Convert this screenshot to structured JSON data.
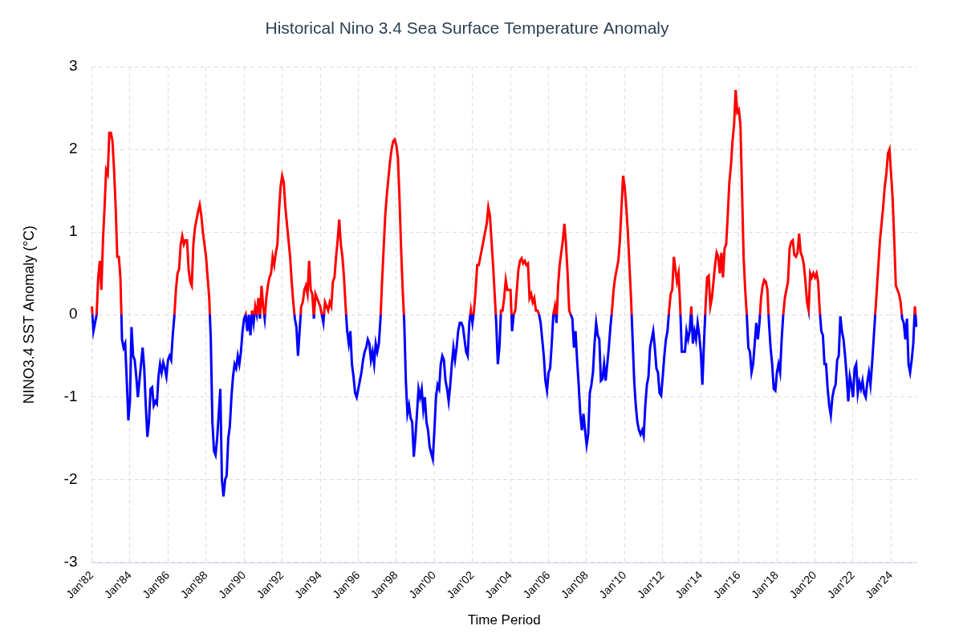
{
  "chart_data": {
    "type": "line",
    "title": "Historical Nino 3.4 Sea Surface Temperature Anomaly",
    "x_label": "Time Period",
    "y_label": "NINO3.4 SST Anomaly (°C)",
    "color": {
      "positive": "#ff0000",
      "negative": "#0000ff"
    },
    "grid": true,
    "ylim": [
      -3,
      3
    ],
    "yticks": [
      -3,
      -2,
      -1,
      0,
      1,
      2,
      3
    ],
    "categories": [
      "Jan'82",
      null,
      null,
      null,
      null,
      null,
      null,
      null,
      null,
      null,
      null,
      null,
      null,
      null,
      null,
      null,
      null,
      null,
      null,
      null,
      null,
      null,
      null,
      null,
      "Jan'84",
      null,
      null,
      null,
      null,
      null,
      null,
      null,
      null,
      null,
      null,
      null,
      null,
      null,
      null,
      null,
      null,
      null,
      null,
      null,
      null,
      null,
      null,
      null,
      "Jan'86",
      null,
      null,
      null,
      null,
      null,
      null,
      null,
      null,
      null,
      null,
      null,
      null,
      null,
      null,
      null,
      null,
      null,
      null,
      null,
      null,
      null,
      null,
      null,
      "Jan'88",
      null,
      null,
      null,
      null,
      null,
      null,
      null,
      null,
      null,
      null,
      null,
      null,
      null,
      null,
      null,
      null,
      null,
      null,
      null,
      null,
      null,
      null,
      null,
      "Jan'90",
      null,
      null,
      null,
      null,
      null,
      null,
      null,
      null,
      null,
      null,
      null,
      null,
      null,
      null,
      null,
      null,
      null,
      null,
      null,
      null,
      null,
      null,
      null,
      "Jan'92",
      null,
      null,
      null,
      null,
      null,
      null,
      null,
      null,
      null,
      null,
      null,
      null,
      null,
      null,
      null,
      null,
      null,
      null,
      null,
      null,
      null,
      null,
      null,
      "Jan'94",
      null,
      null,
      null,
      null,
      null,
      null,
      null,
      null,
      null,
      null,
      null,
      null,
      null,
      null,
      null,
      null,
      null,
      null,
      null,
      null,
      null,
      null,
      null,
      "Jan'96",
      null,
      null,
      null,
      null,
      null,
      null,
      null,
      null,
      null,
      null,
      null,
      null,
      null,
      null,
      null,
      null,
      null,
      null,
      null,
      null,
      null,
      null,
      null,
      "Jan'98",
      null,
      null,
      null,
      null,
      null,
      null,
      null,
      null,
      null,
      null,
      null,
      null,
      null,
      null,
      null,
      null,
      null,
      null,
      null,
      null,
      null,
      null,
      null,
      "Jan'00",
      null,
      null,
      null,
      null,
      null,
      null,
      null,
      null,
      null,
      null,
      null,
      null,
      null,
      null,
      null,
      null,
      null,
      null,
      null,
      null,
      null,
      null,
      null,
      "Jan'02",
      null,
      null,
      null,
      null,
      null,
      null,
      null,
      null,
      null,
      null,
      null,
      null,
      null,
      null,
      null,
      null,
      null,
      null,
      null,
      null,
      null,
      null,
      null,
      "Jan'04",
      null,
      null,
      null,
      null,
      null,
      null,
      null,
      null,
      null,
      null,
      null,
      null,
      null,
      null,
      null,
      null,
      null,
      null,
      null,
      null,
      null,
      null,
      null,
      "Jan'06",
      null,
      null,
      null,
      null,
      null,
      null,
      null,
      null,
      null,
      null,
      null,
      null,
      null,
      null,
      null,
      null,
      null,
      null,
      null,
      null,
      null,
      null,
      null,
      "Jan'08",
      null,
      null,
      null,
      null,
      null,
      null,
      null,
      null,
      null,
      null,
      null,
      null,
      null,
      null,
      null,
      null,
      null,
      null,
      null,
      null,
      null,
      null,
      null,
      "Jan'10",
      null,
      null,
      null,
      null,
      null,
      null,
      null,
      null,
      null,
      null,
      null,
      null,
      null,
      null,
      null,
      null,
      null,
      null,
      null,
      null,
      null,
      null,
      null,
      "Jan'12",
      null,
      null,
      null,
      null,
      null,
      null,
      null,
      null,
      null,
      null,
      null,
      null,
      null,
      null,
      null,
      null,
      null,
      null,
      null,
      null,
      null,
      null,
      null,
      "Jan'14",
      null,
      null,
      null,
      null,
      null,
      null,
      null,
      null,
      null,
      null,
      null,
      null,
      null,
      null,
      null,
      null,
      null,
      null,
      null,
      null,
      null,
      null,
      null,
      "Jan'16",
      null,
      null,
      null,
      null,
      null,
      null,
      null,
      null,
      null,
      null,
      null,
      null,
      null,
      null,
      null,
      null,
      null,
      null,
      null,
      null,
      null,
      null,
      null,
      "Jan'18",
      null,
      null,
      null,
      null,
      null,
      null,
      null,
      null,
      null,
      null,
      null,
      null,
      null,
      null,
      null,
      null,
      null,
      null,
      null,
      null,
      null,
      null,
      null,
      "Jan'20",
      null,
      null,
      null,
      null,
      null,
      null,
      null,
      null,
      null,
      null,
      null,
      null,
      null,
      null,
      null,
      null,
      null,
      null,
      null,
      null,
      null,
      null,
      null,
      "Jan'22",
      null,
      null,
      null,
      null,
      null,
      null,
      null,
      null,
      null,
      null,
      null,
      null,
      null,
      null,
      null,
      null,
      null,
      null,
      null,
      null,
      null,
      null,
      null,
      "Jan'24",
      null,
      null,
      null,
      null,
      null,
      null,
      null,
      null,
      null,
      null,
      null,
      null,
      null,
      null,
      null,
      null
    ],
    "values": [
      0.1,
      -0.2,
      -0.1,
      0.0,
      0.45,
      0.65,
      0.3,
      0.9,
      1.3,
      1.75,
      1.7,
      2.2,
      2.2,
      2.1,
      1.75,
      1.3,
      0.7,
      0.7,
      0.45,
      -0.3,
      -0.4,
      -0.35,
      -0.8,
      -1.28,
      -1.05,
      -0.15,
      -0.5,
      -0.55,
      -0.75,
      -1.0,
      -0.8,
      -0.6,
      -0.4,
      -0.65,
      -1.1,
      -1.48,
      -1.3,
      -0.9,
      -0.88,
      -1.1,
      -1.05,
      -1.08,
      -0.75,
      -0.6,
      -0.7,
      -0.58,
      -0.65,
      -0.75,
      -0.55,
      -0.5,
      -0.55,
      -0.25,
      -0.02,
      0.3,
      0.5,
      0.55,
      0.85,
      0.95,
      0.85,
      0.9,
      0.9,
      0.55,
      0.4,
      0.35,
      0.85,
      1.05,
      1.15,
      1.25,
      1.33,
      1.2,
      1.0,
      0.85,
      0.7,
      0.45,
      0.2,
      -0.3,
      -1.3,
      -1.65,
      -1.7,
      -1.5,
      -1.2,
      -0.9,
      -2.0,
      -2.2,
      -2.0,
      -1.95,
      -1.5,
      -1.35,
      -1.0,
      -0.75,
      -0.6,
      -0.65,
      -0.5,
      -0.6,
      -0.45,
      -0.2,
      -0.05,
      0.0,
      -0.2,
      0.0,
      -0.25,
      0.05,
      -0.1,
      0.1,
      0.0,
      0.2,
      -0.05,
      0.35,
      0.1,
      -0.05,
      0.2,
      0.35,
      0.45,
      0.5,
      0.7,
      0.6,
      0.75,
      0.85,
      1.25,
      1.55,
      1.68,
      1.6,
      1.3,
      1.1,
      0.9,
      0.7,
      0.4,
      0.15,
      -0.05,
      -0.15,
      -0.5,
      -0.2,
      0.1,
      0.15,
      0.3,
      0.35,
      0.25,
      0.65,
      0.3,
      0.25,
      -0.05,
      0.25,
      0.2,
      0.15,
      0.1,
      0.0,
      -0.1,
      0.15,
      0.1,
      0.05,
      0.15,
      0.1,
      0.4,
      0.45,
      0.7,
      0.9,
      1.15,
      0.85,
      0.7,
      0.45,
      0.1,
      -0.2,
      -0.35,
      -0.2,
      -0.6,
      -0.75,
      -0.95,
      -1.0,
      -0.9,
      -0.8,
      -0.7,
      -0.55,
      -0.45,
      -0.4,
      -0.3,
      -0.35,
      -0.55,
      -0.45,
      -0.6,
      -0.35,
      -0.45,
      -0.35,
      -0.05,
      0.4,
      0.8,
      1.2,
      1.45,
      1.65,
      1.85,
      2.0,
      2.1,
      2.12,
      2.05,
      1.9,
      1.4,
      0.8,
      0.3,
      -0.1,
      -0.8,
      -1.2,
      -1.1,
      -1.25,
      -1.3,
      -1.72,
      -1.5,
      -1.2,
      -0.9,
      -1.0,
      -0.9,
      -1.15,
      -1.0,
      -1.3,
      -1.4,
      -1.6,
      -1.68,
      -1.75,
      -1.4,
      -1.0,
      -0.85,
      -0.9,
      -0.6,
      -0.5,
      -0.55,
      -0.8,
      -0.9,
      -1.05,
      -0.85,
      -0.6,
      -0.4,
      -0.55,
      -0.4,
      -0.2,
      -0.1,
      -0.1,
      -0.15,
      -0.3,
      -0.45,
      -0.5,
      -0.1,
      0.05,
      -0.1,
      0.05,
      0.3,
      0.6,
      0.6,
      0.7,
      0.8,
      0.9,
      1.0,
      1.1,
      1.3,
      1.2,
      0.9,
      0.6,
      0.25,
      -0.1,
      -0.6,
      -0.4,
      0.05,
      0.05,
      0.2,
      0.42,
      0.3,
      0.3,
      0.3,
      -0.2,
      0.0,
      0.05,
      0.3,
      0.55,
      0.65,
      0.68,
      0.62,
      0.65,
      0.6,
      0.62,
      0.2,
      0.25,
      0.15,
      0.2,
      0.05,
      0.05,
      0.0,
      -0.1,
      -0.3,
      -0.5,
      -0.8,
      -0.92,
      -0.7,
      -0.65,
      -0.35,
      0.0,
      0.1,
      -0.1,
      0.35,
      0.6,
      0.75,
      0.9,
      1.1,
      0.85,
      0.5,
      0.05,
      0.0,
      -0.05,
      -0.4,
      -0.2,
      -0.55,
      -0.85,
      -1.2,
      -1.4,
      -1.2,
      -1.4,
      -1.58,
      -1.45,
      -0.95,
      -0.85,
      -0.7,
      -0.35,
      -0.1,
      -0.25,
      -0.3,
      -0.8,
      -0.78,
      -0.6,
      -0.8,
      -0.6,
      -0.4,
      -0.15,
      0.05,
      0.3,
      0.45,
      0.55,
      0.65,
      0.9,
      1.3,
      1.68,
      1.55,
      1.3,
      1.0,
      0.6,
      0.2,
      -0.3,
      -0.8,
      -1.1,
      -1.3,
      -1.4,
      -1.45,
      -1.4,
      -1.47,
      -1.1,
      -0.85,
      -0.75,
      -0.4,
      -0.3,
      -0.2,
      -0.4,
      -0.65,
      -0.7,
      -0.95,
      -0.98,
      -0.75,
      -0.5,
      -0.3,
      -0.2,
      0.05,
      0.25,
      0.3,
      0.7,
      0.55,
      0.4,
      0.5,
      0.1,
      -0.45,
      -0.45,
      -0.45,
      -0.2,
      -0.3,
      -0.2,
      0.1,
      -0.35,
      -0.2,
      -0.3,
      -0.1,
      -0.25,
      -0.45,
      -0.85,
      -0.35,
      0.1,
      0.45,
      0.47,
      0.1,
      0.2,
      0.4,
      0.6,
      0.75,
      0.7,
      0.5,
      0.75,
      0.45,
      0.8,
      0.85,
      1.2,
      1.6,
      1.8,
      2.1,
      2.3,
      2.72,
      2.45,
      2.48,
      2.3,
      1.5,
      0.7,
      0.3,
      0.0,
      -0.4,
      -0.45,
      -0.7,
      -0.6,
      -0.35,
      -0.1,
      -0.3,
      -0.1,
      0.2,
      0.35,
      0.42,
      0.4,
      0.3,
      -0.1,
      -0.4,
      -0.6,
      -0.9,
      -0.92,
      -0.7,
      -0.6,
      -0.7,
      -0.3,
      0.0,
      0.2,
      0.3,
      0.4,
      0.8,
      0.88,
      0.9,
      0.72,
      0.7,
      0.75,
      0.98,
      0.75,
      0.7,
      0.6,
      0.4,
      0.15,
      0.05,
      0.5,
      0.45,
      0.5,
      0.45,
      0.5,
      0.4,
      0.05,
      -0.2,
      -0.25,
      -0.6,
      -0.6,
      -0.9,
      -1.1,
      -1.22,
      -1.0,
      -0.9,
      -0.85,
      -0.55,
      -0.5,
      -0.02,
      -0.2,
      -0.3,
      -0.5,
      -0.75,
      -1.05,
      -0.75,
      -0.85,
      -1.0,
      -0.65,
      -0.6,
      -0.95,
      -0.82,
      -0.9,
      -0.8,
      -0.95,
      -1.0,
      -0.82,
      -0.7,
      -0.85,
      -0.6,
      -0.3,
      0.0,
      0.3,
      0.6,
      0.9,
      1.1,
      1.3,
      1.55,
      1.7,
      1.95,
      2.0,
      1.7,
      1.4,
      0.9,
      0.35,
      0.3,
      0.25,
      0.15,
      -0.05,
      -0.1,
      -0.3,
      -0.05,
      -0.6,
      -0.7,
      -0.55,
      -0.35,
      0.1,
      -0.15
    ]
  }
}
